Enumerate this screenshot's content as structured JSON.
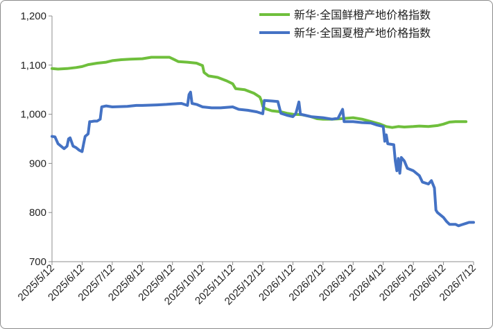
{
  "chart_data": {
    "type": "line",
    "title": "",
    "xlabel": "",
    "ylabel": "",
    "ylim": [
      700,
      1200
    ],
    "y_ticks": [
      700,
      800,
      900,
      1000,
      1100,
      1200
    ],
    "y_tick_labels": [
      "700",
      "800",
      "900",
      "1,000",
      "1,100",
      "1,200"
    ],
    "x_tick_labels": [
      "2025/5/12",
      "2025/6/12",
      "2025/7/12",
      "2025/8/12",
      "2025/9/12",
      "2025/10/12",
      "2025/11/12",
      "2025/12/12",
      "2026/1/12",
      "2026/2/12",
      "2026/3/12",
      "2026/4/12",
      "2026/5/12",
      "2026/6/12",
      "2026/7/12"
    ],
    "grid": false,
    "legend_position": "top-right",
    "series": [
      {
        "name": "新华·全国鲜橙产地价格指数",
        "color": "#6fbf3c",
        "points": [
          [
            0,
            1093
          ],
          [
            0.2,
            1092
          ],
          [
            0.5,
            1093
          ],
          [
            0.8,
            1095
          ],
          [
            1.0,
            1097
          ],
          [
            1.2,
            1101
          ],
          [
            1.5,
            1104
          ],
          [
            1.8,
            1106
          ],
          [
            2.0,
            1109
          ],
          [
            2.3,
            1111
          ],
          [
            2.6,
            1112
          ],
          [
            3.0,
            1113
          ],
          [
            3.3,
            1116
          ],
          [
            3.6,
            1116
          ],
          [
            3.9,
            1116
          ],
          [
            4.0,
            1113
          ],
          [
            4.2,
            1107
          ],
          [
            4.5,
            1106
          ],
          [
            4.8,
            1104
          ],
          [
            5.0,
            1099
          ],
          [
            5.05,
            1085
          ],
          [
            5.2,
            1078
          ],
          [
            5.5,
            1075
          ],
          [
            5.8,
            1068
          ],
          [
            6.0,
            1062
          ],
          [
            6.1,
            1052
          ],
          [
            6.4,
            1050
          ],
          [
            6.7,
            1043
          ],
          [
            6.9,
            1035
          ],
          [
            6.95,
            1028
          ],
          [
            7.0,
            1016
          ],
          [
            7.1,
            1011
          ],
          [
            7.3,
            1007
          ],
          [
            7.6,
            1005
          ],
          [
            7.8,
            1002
          ],
          [
            8.0,
            1000
          ],
          [
            8.3,
            999
          ],
          [
            8.6,
            995
          ],
          [
            8.8,
            991
          ],
          [
            9.0,
            990
          ],
          [
            9.3,
            990
          ],
          [
            9.6,
            991
          ],
          [
            10.0,
            993
          ],
          [
            10.3,
            990
          ],
          [
            10.6,
            985
          ],
          [
            10.9,
            980
          ],
          [
            11.1,
            975
          ],
          [
            11.3,
            973
          ],
          [
            11.5,
            975
          ],
          [
            11.7,
            974
          ],
          [
            12.0,
            975
          ],
          [
            12.2,
            976
          ],
          [
            12.5,
            975
          ],
          [
            12.8,
            977
          ],
          [
            13.0,
            980
          ],
          [
            13.2,
            984
          ],
          [
            13.4,
            985
          ],
          [
            13.6,
            985
          ],
          [
            13.75,
            985
          ]
        ]
      },
      {
        "name": "新华·全国夏橙产地价格指数",
        "color": "#4472c4",
        "points": [
          [
            0,
            955
          ],
          [
            0.1,
            954
          ],
          [
            0.2,
            940
          ],
          [
            0.3,
            935
          ],
          [
            0.4,
            930
          ],
          [
            0.5,
            935
          ],
          [
            0.55,
            950
          ],
          [
            0.6,
            952
          ],
          [
            0.7,
            935
          ],
          [
            0.8,
            932
          ],
          [
            0.9,
            927
          ],
          [
            1.0,
            924
          ],
          [
            1.05,
            940
          ],
          [
            1.1,
            955
          ],
          [
            1.2,
            960
          ],
          [
            1.25,
            985
          ],
          [
            1.3,
            985
          ],
          [
            1.4,
            986
          ],
          [
            1.5,
            986
          ],
          [
            1.6,
            990
          ],
          [
            1.65,
            1015
          ],
          [
            1.8,
            1017
          ],
          [
            2.0,
            1015
          ],
          [
            2.5,
            1016
          ],
          [
            2.8,
            1018
          ],
          [
            3.0,
            1018
          ],
          [
            3.5,
            1019
          ],
          [
            3.8,
            1020
          ],
          [
            4.0,
            1021
          ],
          [
            4.3,
            1022
          ],
          [
            4.5,
            1018
          ],
          [
            4.55,
            1040
          ],
          [
            4.6,
            1045
          ],
          [
            4.65,
            1022
          ],
          [
            4.8,
            1020
          ],
          [
            5.0,
            1015
          ],
          [
            5.3,
            1013
          ],
          [
            5.6,
            1013
          ],
          [
            6.0,
            1015
          ],
          [
            6.2,
            1010
          ],
          [
            6.5,
            1008
          ],
          [
            6.8,
            1005
          ],
          [
            7.0,
            1001
          ],
          [
            7.05,
            1028
          ],
          [
            7.3,
            1027
          ],
          [
            7.5,
            1026
          ],
          [
            7.6,
            1002
          ],
          [
            7.8,
            998
          ],
          [
            8.0,
            995
          ],
          [
            8.1,
            1002
          ],
          [
            8.2,
            1025
          ],
          [
            8.25,
            1000
          ],
          [
            8.4,
            998
          ],
          [
            8.6,
            995
          ],
          [
            9.0,
            993
          ],
          [
            9.3,
            990
          ],
          [
            9.5,
            992
          ],
          [
            9.65,
            1010
          ],
          [
            9.7,
            985
          ],
          [
            10.0,
            985
          ],
          [
            10.3,
            983
          ],
          [
            10.6,
            982
          ],
          [
            10.8,
            978
          ],
          [
            11.0,
            975
          ],
          [
            11.05,
            945
          ],
          [
            11.1,
            958
          ],
          [
            11.15,
            940
          ],
          [
            11.35,
            938
          ],
          [
            11.4,
            905
          ],
          [
            11.45,
            885
          ],
          [
            11.5,
            910
          ],
          [
            11.55,
            880
          ],
          [
            11.6,
            912
          ],
          [
            11.7,
            905
          ],
          [
            11.8,
            890
          ],
          [
            12.0,
            885
          ],
          [
            12.2,
            875
          ],
          [
            12.3,
            862
          ],
          [
            12.5,
            858
          ],
          [
            12.6,
            865
          ],
          [
            12.7,
            850
          ],
          [
            12.75,
            805
          ],
          [
            12.8,
            800
          ],
          [
            12.9,
            795
          ],
          [
            13.0,
            790
          ],
          [
            13.1,
            782
          ],
          [
            13.2,
            776
          ],
          [
            13.4,
            776
          ],
          [
            13.5,
            773
          ],
          [
            13.6,
            775
          ],
          [
            13.75,
            778
          ],
          [
            13.85,
            780
          ],
          [
            14.0,
            780
          ]
        ]
      }
    ]
  }
}
